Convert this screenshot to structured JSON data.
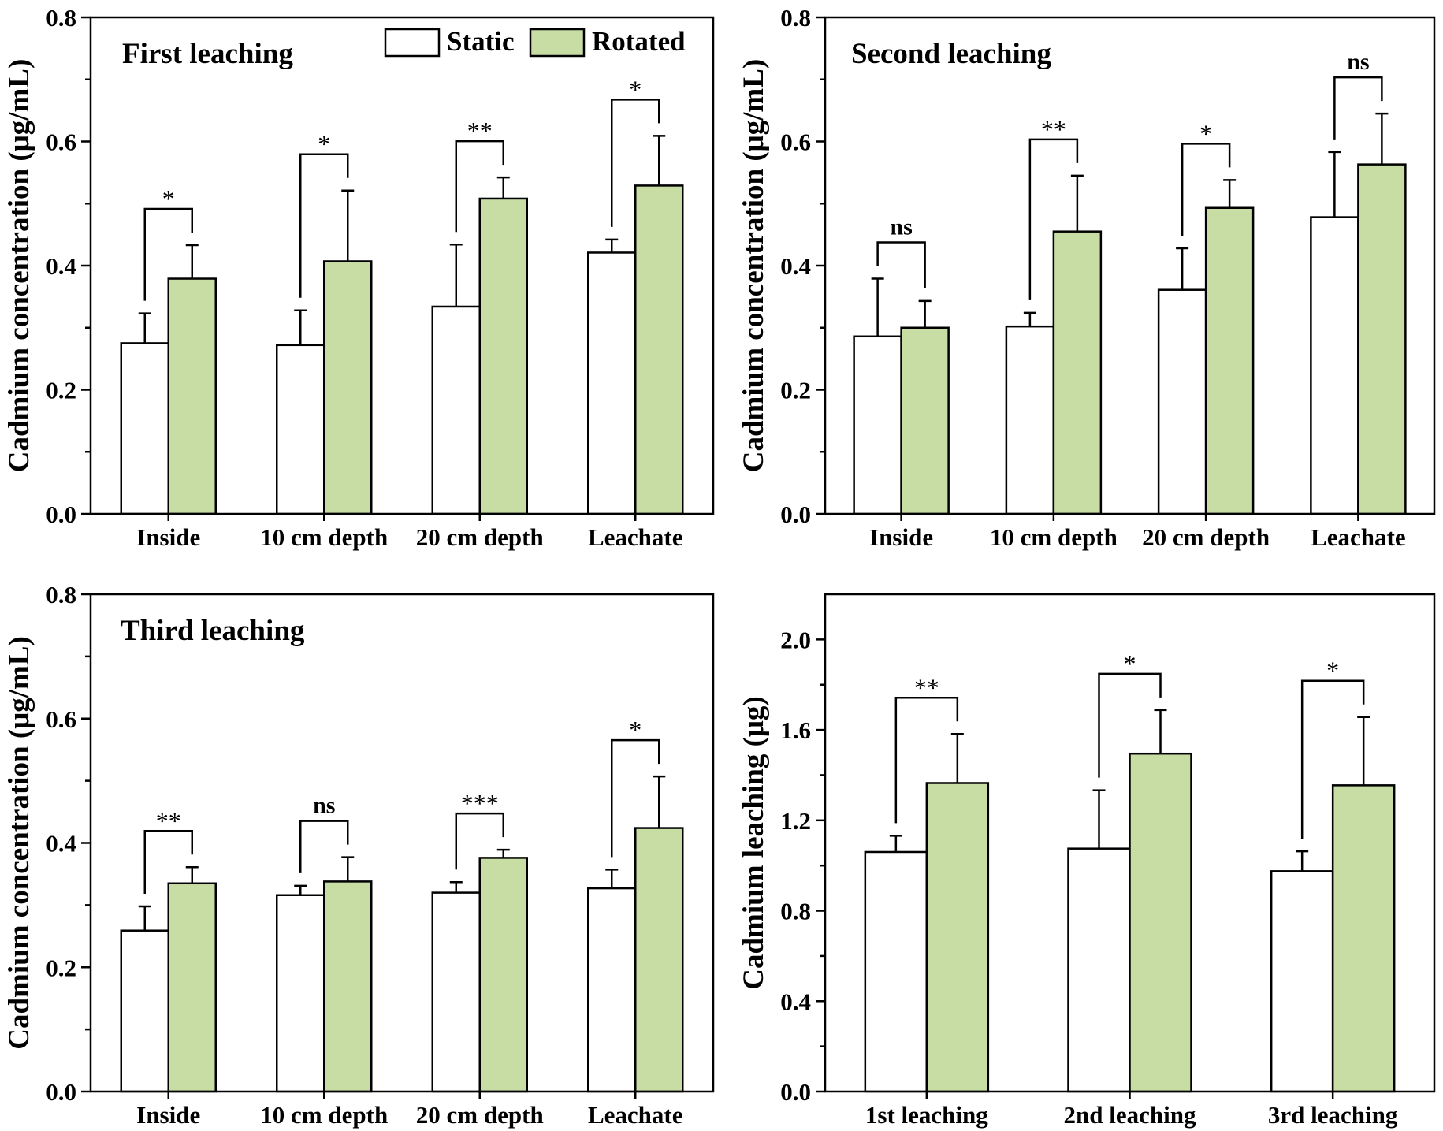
{
  "colors": {
    "static": "#ffffff",
    "rotated": "#c8dda4",
    "ink": "#000000"
  },
  "legend": {
    "static": "Static",
    "rotated": "Rotated",
    "placement": "top-right of first panel"
  },
  "chart_data": [
    {
      "type": "bar",
      "title": "First leaching",
      "xlabel": "",
      "ylabel": "Cadmium concentration (μg/mL)",
      "ylim": [
        0,
        0.8
      ],
      "yticks": [
        "0.0",
        "0.2",
        "0.4",
        "0.6",
        "0.8"
      ],
      "categories": [
        "Inside",
        "10 cm depth",
        "20 cm depth",
        "Leachate"
      ],
      "series": [
        {
          "name": "Static",
          "values": [
            0.275,
            0.272,
            0.334,
            0.421
          ],
          "errors": [
            0.048,
            0.056,
            0.1,
            0.021
          ]
        },
        {
          "name": "Rotated",
          "values": [
            0.379,
            0.407,
            0.508,
            0.529
          ],
          "errors": [
            0.054,
            0.114,
            0.034,
            0.08
          ]
        }
      ],
      "significance": [
        "*",
        "*",
        "**",
        "*"
      ]
    },
    {
      "type": "bar",
      "title": "Second leaching",
      "xlabel": "",
      "ylabel": "Cadmium concentration (μg/mL)",
      "ylim": [
        0,
        0.8
      ],
      "yticks": [
        "0.0",
        "0.2",
        "0.4",
        "0.6",
        "0.8"
      ],
      "categories": [
        "Inside",
        "10 cm depth",
        "20 cm depth",
        "Leachate"
      ],
      "series": [
        {
          "name": "Static",
          "values": [
            0.286,
            0.302,
            0.361,
            0.478
          ],
          "errors": [
            0.093,
            0.022,
            0.067,
            0.105
          ]
        },
        {
          "name": "Rotated",
          "values": [
            0.3,
            0.455,
            0.493,
            0.563
          ],
          "errors": [
            0.043,
            0.09,
            0.045,
            0.082
          ]
        }
      ],
      "significance": [
        "ns",
        "**",
        "*",
        "ns"
      ]
    },
    {
      "type": "bar",
      "title": "Third leaching",
      "xlabel": "",
      "ylabel": "Cadmium concentration (μg/mL)",
      "ylim": [
        0,
        0.8
      ],
      "yticks": [
        "0.0",
        "0.2",
        "0.4",
        "0.6",
        "0.8"
      ],
      "categories": [
        "Inside",
        "10 cm depth",
        "20 cm depth",
        "Leachate"
      ],
      "series": [
        {
          "name": "Static",
          "values": [
            0.259,
            0.316,
            0.32,
            0.327
          ],
          "errors": [
            0.039,
            0.015,
            0.017,
            0.03
          ]
        },
        {
          "name": "Rotated",
          "values": [
            0.335,
            0.338,
            0.376,
            0.424
          ],
          "errors": [
            0.026,
            0.039,
            0.013,
            0.083
          ]
        }
      ],
      "significance": [
        "**",
        "ns",
        "***",
        "*"
      ]
    },
    {
      "type": "bar",
      "title": "",
      "xlabel": "",
      "ylabel": "Cadmium leaching (μg)",
      "ylim": [
        0,
        2.2
      ],
      "yticks": [
        "0.0",
        "0.4",
        "0.8",
        "1.2",
        "1.6",
        "2.0"
      ],
      "categories": [
        "1st leaching",
        "2nd leaching",
        "3rd leaching"
      ],
      "series": [
        {
          "name": "Static",
          "values": [
            1.06,
            1.075,
            0.975
          ],
          "errors": [
            0.072,
            0.258,
            0.088
          ]
        },
        {
          "name": "Rotated",
          "values": [
            1.365,
            1.495,
            1.355
          ],
          "errors": [
            0.217,
            0.193,
            0.302
          ]
        }
      ],
      "significance": [
        "**",
        "*",
        "*"
      ]
    }
  ]
}
